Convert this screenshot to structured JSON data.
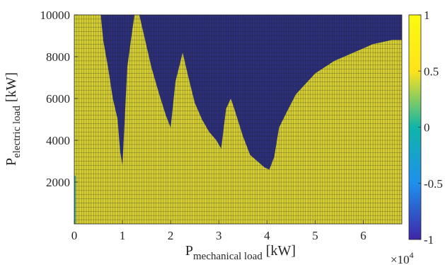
{
  "chart_data": {
    "type": "heatmap",
    "xlabel": {
      "main": "P",
      "subscript": "mechanical load",
      "unit": " [kW]"
    },
    "ylabel": {
      "main": "P",
      "subscript": "electric load",
      "unit": " [kW]"
    },
    "x_exponent": {
      "base": "×10",
      "power": "4"
    },
    "xlim": [
      0,
      68000
    ],
    "ylim": [
      0,
      10000
    ],
    "x_ticks": [
      0,
      1,
      2,
      3,
      4,
      5,
      6
    ],
    "y_ticks": [
      2000,
      4000,
      6000,
      8000,
      10000
    ],
    "colorbar": {
      "range": [
        -1,
        1
      ],
      "ticks": [
        1,
        0.5,
        0,
        -0.5,
        -1
      ],
      "colors": [
        "#3e26a8",
        "#1e90ee",
        "#0fb6a8",
        "#ffe31a",
        "#f9fb0e"
      ],
      "tick_labels": [
        "1",
        "0.5",
        "0",
        "-0.5",
        "-1"
      ]
    },
    "cell_colors": {
      "value_1": "#d6cf33",
      "value_minus_1": "#2c2f7a",
      "grid_line": "#1f1f1f"
    },
    "boundary": {
      "description_units": "x in kW, y in kW; region above the boundary has value -1, below has value 1",
      "points": [
        [
          0,
          10000
        ],
        [
          5500,
          10000
        ],
        [
          6000,
          8800
        ],
        [
          7000,
          7500
        ],
        [
          8000,
          6000
        ],
        [
          9000,
          5000
        ],
        [
          9500,
          3500
        ],
        [
          10000,
          2800
        ],
        [
          11000,
          7500
        ],
        [
          12000,
          9200
        ],
        [
          12500,
          10000
        ],
        [
          13500,
          10000
        ],
        [
          14500,
          9000
        ],
        [
          16000,
          7500
        ],
        [
          17500,
          6300
        ],
        [
          19000,
          5200
        ],
        [
          20000,
          4600
        ],
        [
          21000,
          6800
        ],
        [
          22500,
          8200
        ],
        [
          23500,
          7200
        ],
        [
          25000,
          5800
        ],
        [
          26500,
          5000
        ],
        [
          28000,
          4400
        ],
        [
          29500,
          4000
        ],
        [
          30500,
          3600
        ],
        [
          31500,
          5500
        ],
        [
          32500,
          6000
        ],
        [
          33500,
          5300
        ],
        [
          35000,
          4200
        ],
        [
          36500,
          3300
        ],
        [
          38000,
          3000
        ],
        [
          39500,
          2700
        ],
        [
          40500,
          2600
        ],
        [
          41500,
          3200
        ],
        [
          42500,
          4600
        ],
        [
          44000,
          5300
        ],
        [
          46000,
          6200
        ],
        [
          48000,
          6700
        ],
        [
          50000,
          7200
        ],
        [
          52000,
          7500
        ],
        [
          54000,
          7800
        ],
        [
          56000,
          8000
        ],
        [
          58000,
          8200
        ],
        [
          60000,
          8400
        ],
        [
          62000,
          8600
        ],
        [
          64000,
          8700
        ],
        [
          66000,
          8800
        ],
        [
          68000,
          8800
        ]
      ]
    }
  }
}
